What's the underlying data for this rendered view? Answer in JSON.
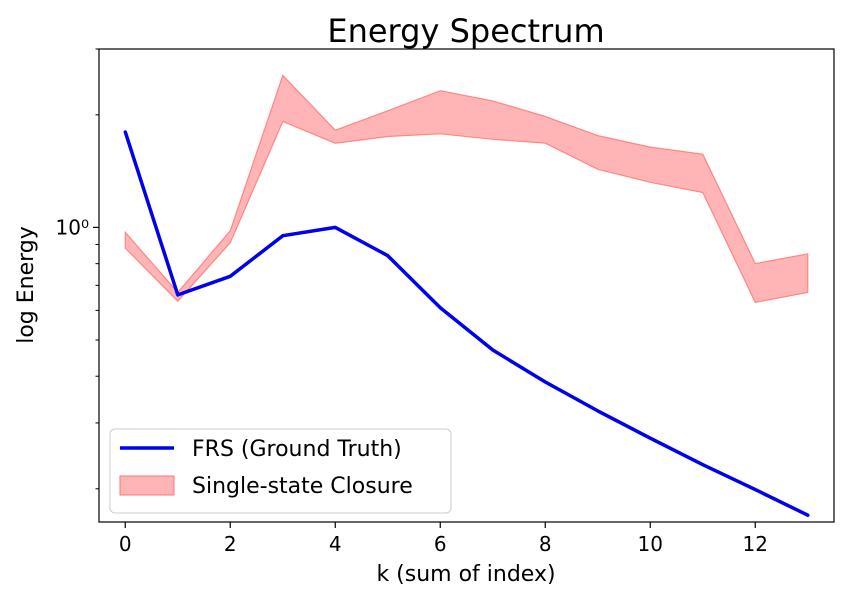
{
  "chart_data": {
    "type": "line",
    "title": "Energy Spectrum",
    "xlabel": "k (sum of index)",
    "ylabel": "log Energy",
    "yscale": "log",
    "xlim": [
      -0.5,
      13.5
    ],
    "ylim": [
      0.163,
      3.0
    ],
    "x_ticks": [
      0,
      2,
      4,
      6,
      8,
      10,
      12
    ],
    "x_tick_labels": [
      "0",
      "2",
      "4",
      "6",
      "8",
      "10",
      "12"
    ],
    "y_major_ticks": [
      1.0
    ],
    "y_major_tick_labels": [
      "10⁰"
    ],
    "y_minor_ticks": [
      0.2,
      0.3,
      0.4,
      0.5,
      0.6,
      0.7,
      0.8,
      0.9,
      2.0,
      3.0
    ],
    "legend_position": "lower-left",
    "series": [
      {
        "name": "FRS (Ground Truth)",
        "kind": "line",
        "color": "#0000ee",
        "x": [
          0,
          1,
          2,
          3,
          4,
          5,
          6,
          7,
          8,
          9,
          10,
          11,
          12,
          13
        ],
        "y": [
          1.8,
          0.66,
          0.74,
          0.95,
          1.0,
          0.84,
          0.61,
          0.47,
          0.386,
          0.323,
          0.273,
          0.232,
          0.199,
          0.17
        ]
      },
      {
        "name": "Single-state Closure",
        "kind": "band",
        "color": "#ff6b6b",
        "x": [
          0,
          1,
          2,
          3,
          4,
          5,
          6,
          7,
          8,
          9,
          10,
          11,
          12,
          13
        ],
        "lower": [
          0.88,
          0.635,
          0.91,
          1.92,
          1.68,
          1.75,
          1.78,
          1.72,
          1.68,
          1.43,
          1.32,
          1.24,
          0.63,
          0.67
        ],
        "upper": [
          0.97,
          0.67,
          0.98,
          2.55,
          1.82,
          2.05,
          2.32,
          2.18,
          1.98,
          1.76,
          1.64,
          1.57,
          0.8,
          0.85
        ]
      }
    ]
  }
}
